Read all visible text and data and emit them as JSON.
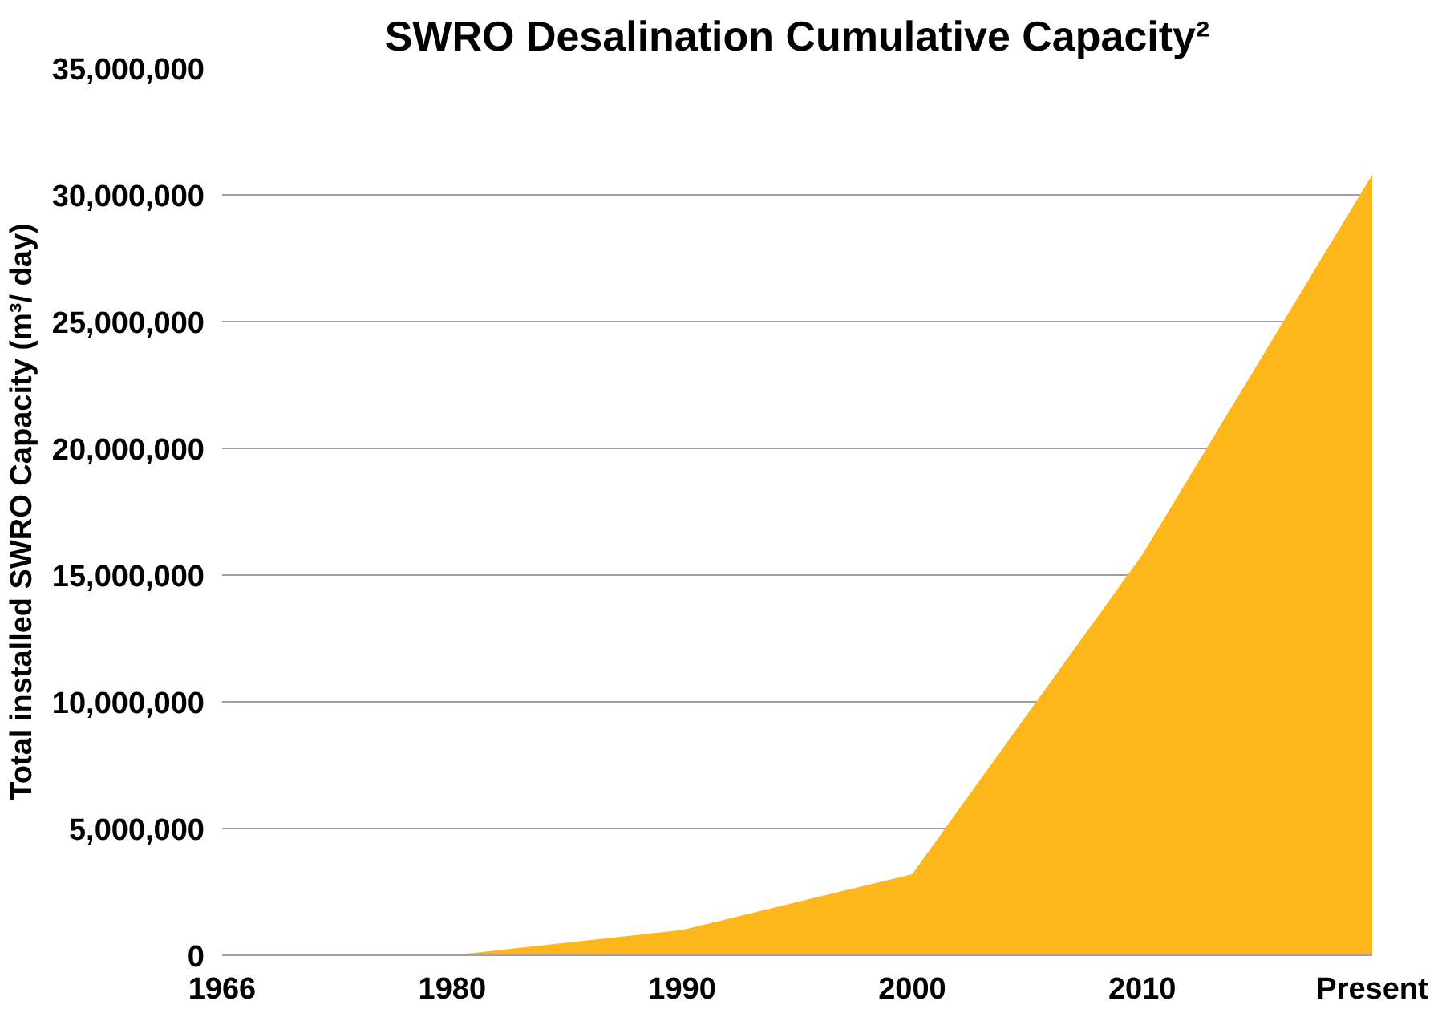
{
  "chart_data": {
    "type": "area",
    "title": "SWRO Desalination Cumulative Capacity²",
    "ylabel": "Total installed SWRO Capacity (m³/ day)",
    "categories": [
      "1966",
      "1980",
      "1990",
      "2000",
      "2010",
      "Present"
    ],
    "series": [
      {
        "color": "#fdb71a",
        "values": [
          0,
          0,
          1000000,
          3200000,
          15800000,
          30800000
        ]
      }
    ],
    "ylim": [
      0,
      35000000
    ],
    "yticks": [
      0,
      {
        "value": 5000000,
        "label": "5,000,000"
      },
      {
        "value": 10000000,
        "label": "10,000,000"
      },
      {
        "value": 15000000,
        "label": "15,000,000"
      },
      {
        "value": 20000000,
        "label": "20,000,000"
      },
      {
        "value": 25000000,
        "label": "25,000,000"
      },
      {
        "value": 30000000,
        "label": "30,000,000"
      },
      {
        "value": 35000000,
        "label": "35,000,000"
      }
    ],
    "grid": "y"
  }
}
